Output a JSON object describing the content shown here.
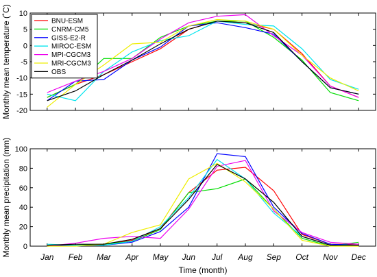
{
  "chart_data": [
    {
      "type": "line",
      "ylabel": "Monthly mean temperature (˚C)",
      "xlabel": "",
      "ylim": [
        -20,
        10
      ],
      "yticks": [
        -20,
        -15,
        -10,
        -5,
        0,
        5,
        10
      ],
      "x": [
        1,
        2,
        3,
        4,
        5,
        6,
        7,
        8,
        9,
        10,
        11,
        12
      ],
      "legend_position": "top-left",
      "series": [
        {
          "name": "BNU-ESM",
          "color": "#ff0000",
          "values": [
            -16,
            -12,
            -9,
            -5,
            -1,
            5,
            7.5,
            7,
            5,
            -2.5,
            -12.5,
            -16
          ]
        },
        {
          "name": "CNRM-CM5",
          "color": "#00dd00",
          "values": [
            -16,
            -12,
            -4,
            -4,
            2.5,
            6,
            7.5,
            7.5,
            2.5,
            -4.5,
            -14.5,
            -17
          ]
        },
        {
          "name": "GISS-E2-R",
          "color": "#0000ff",
          "values": [
            -17,
            -11,
            -10.5,
            -4.5,
            -0.5,
            6,
            7,
            5.5,
            3.5,
            -5,
            -13,
            -15
          ]
        },
        {
          "name": "MIROC-ESM",
          "color": "#00e5ee",
          "values": [
            -15,
            -17,
            -8,
            -2,
            1.5,
            3,
            7.5,
            6.5,
            6,
            -1,
            -10.5,
            -13.5
          ]
        },
        {
          "name": "MPI-CGCM3",
          "color": "#ee00ee",
          "values": [
            -14.5,
            -11,
            -8,
            -4,
            2,
            7,
            9,
            9.5,
            3,
            -3,
            -12.5,
            -16
          ]
        },
        {
          "name": "MRI-CGCM3",
          "color": "#eeee00",
          "values": [
            -19,
            -12,
            -6,
            0.5,
            1,
            6,
            8,
            7.5,
            5,
            -3,
            -10,
            -14
          ]
        },
        {
          "name": "OBS",
          "color": "#000000",
          "values": [
            -17,
            -14,
            -9,
            -4.5,
            0.5,
            5,
            7.5,
            7,
            4,
            -5,
            -13,
            -15
          ]
        }
      ]
    },
    {
      "type": "line",
      "ylabel": "Monthly mean precipitation (mm)",
      "xlabel": "Time (month)",
      "ylim": [
        0,
        100
      ],
      "yticks": [
        0,
        20,
        40,
        60,
        80,
        100
      ],
      "categories": [
        "Jan",
        "Feb",
        "Mar",
        "Apr",
        "May",
        "Jun",
        "Jul",
        "Aug",
        "Sep",
        "Oct",
        "Nov",
        "Dec"
      ],
      "x": [
        1,
        2,
        3,
        4,
        5,
        6,
        7,
        8,
        9,
        10,
        11,
        12
      ],
      "series": [
        {
          "name": "BNU-ESM",
          "color": "#ff0000",
          "values": [
            1,
            1,
            2,
            6,
            18,
            55,
            78,
            81,
            57,
            12,
            2,
            2
          ]
        },
        {
          "name": "CNRM-CM5",
          "color": "#00dd00",
          "values": [
            0,
            1,
            2,
            5,
            17,
            55,
            59,
            69,
            38,
            8,
            0,
            4
          ]
        },
        {
          "name": "GISS-E2-R",
          "color": "#0000ff",
          "values": [
            0,
            1,
            1,
            4,
            15,
            40,
            95,
            92,
            40,
            13,
            2,
            1
          ]
        },
        {
          "name": "MIROC-ESM",
          "color": "#00e5ee",
          "values": [
            2,
            1,
            1,
            5,
            20,
            50,
            89,
            69,
            34,
            10,
            1,
            1
          ]
        },
        {
          "name": "MPI-CGCM3",
          "color": "#ee00ee",
          "values": [
            0,
            3,
            8,
            10,
            8,
            38,
            82,
            88,
            36,
            14,
            4,
            2
          ]
        },
        {
          "name": "MRI-CGCM3",
          "color": "#eeee00",
          "values": [
            0,
            0,
            2,
            14,
            22,
            69,
            85,
            66,
            38,
            6,
            0,
            0
          ]
        },
        {
          "name": "OBS",
          "color": "#000000",
          "values": [
            1,
            2,
            2,
            7,
            18,
            48,
            84,
            69,
            45,
            10,
            1,
            1
          ]
        }
      ]
    }
  ]
}
